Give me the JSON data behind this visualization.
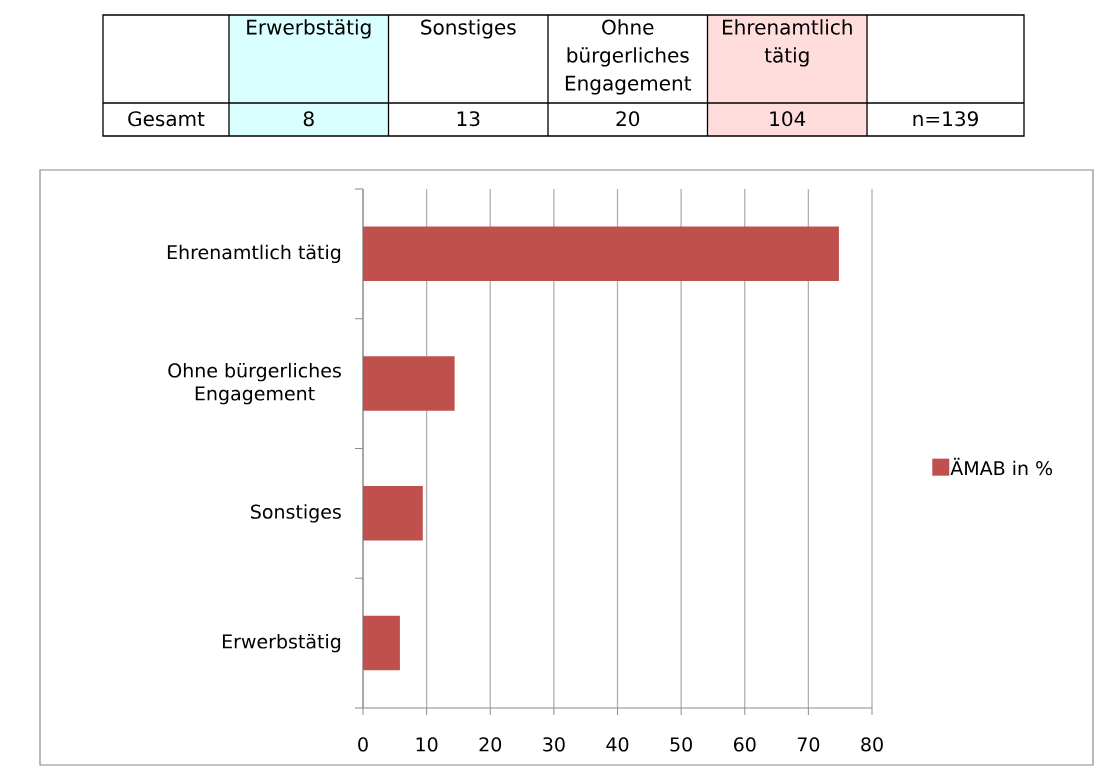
{
  "chart_data": [
    {
      "type": "other",
      "categories": [
        "Erwerbstätig",
        "Sonstiges",
        "Ohne bürgerliches Engagement",
        "Ehrenamtlich tätig"
      ],
      "values": [
        8,
        13,
        20,
        104
      ],
      "data_labels": true,
      "colors": [
        "#d9ffff",
        "#ffffff",
        "#ffffff",
        "#ffdddd"
      ],
      "annotations": [
        "Gesamt",
        "n=139"
      ]
    },
    {
      "type": "bar",
      "orientation": "horizontal",
      "categories": [
        "Ehrenamtlich tätig",
        "Ohne bürgerliches Engagement",
        "Sonstiges",
        "Erwerbstätig"
      ],
      "series": [
        {
          "name": "ÄMAB in %",
          "color": "#c0504d",
          "values": [
            74.8,
            14.4,
            9.4,
            5.8
          ]
        }
      ],
      "xlim": [
        0,
        80
      ],
      "xticks": [
        0,
        10,
        20,
        30,
        40,
        50,
        60,
        70,
        80
      ],
      "grid": "x",
      "legend": "right"
    }
  ]
}
